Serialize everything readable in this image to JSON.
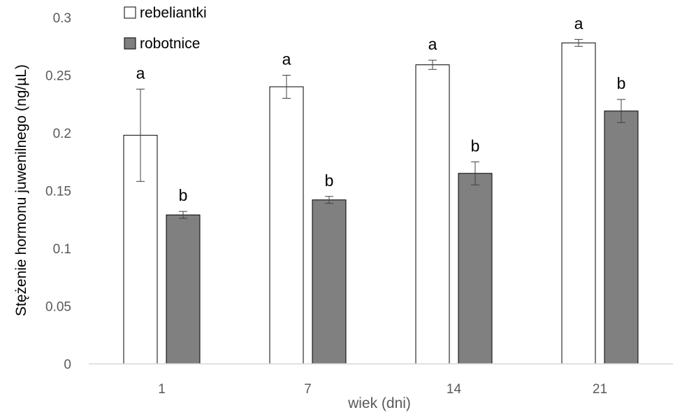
{
  "chart_data": {
    "type": "bar",
    "title": "",
    "xlabel": "wiek (dni)",
    "ylabel": "Stężenie hormonu juwenilnego (ng/µL)",
    "categories": [
      "1",
      "7",
      "14",
      "21"
    ],
    "ylim": [
      0,
      0.3
    ],
    "yticks": [
      0,
      0.05,
      0.1,
      0.15,
      0.2,
      0.25,
      0.3
    ],
    "ytick_labels": [
      "0",
      "0.05",
      "0.1",
      "0.15",
      "0.2",
      "0.25",
      "0.3"
    ],
    "grid": false,
    "legend_position": "top-left",
    "series": [
      {
        "name": "rebeliantki",
        "color": "#ffffff",
        "values": [
          0.198,
          0.24,
          0.259,
          0.278
        ],
        "errors": [
          0.04,
          0.01,
          0.004,
          0.003
        ],
        "labels": [
          "a",
          "a",
          "a",
          "a"
        ]
      },
      {
        "name": "robotnice",
        "color": "#808080",
        "values": [
          0.129,
          0.142,
          0.165,
          0.219
        ],
        "errors": [
          0.003,
          0.003,
          0.01,
          0.01
        ],
        "labels": [
          "b",
          "b",
          "b",
          "b"
        ]
      }
    ]
  }
}
